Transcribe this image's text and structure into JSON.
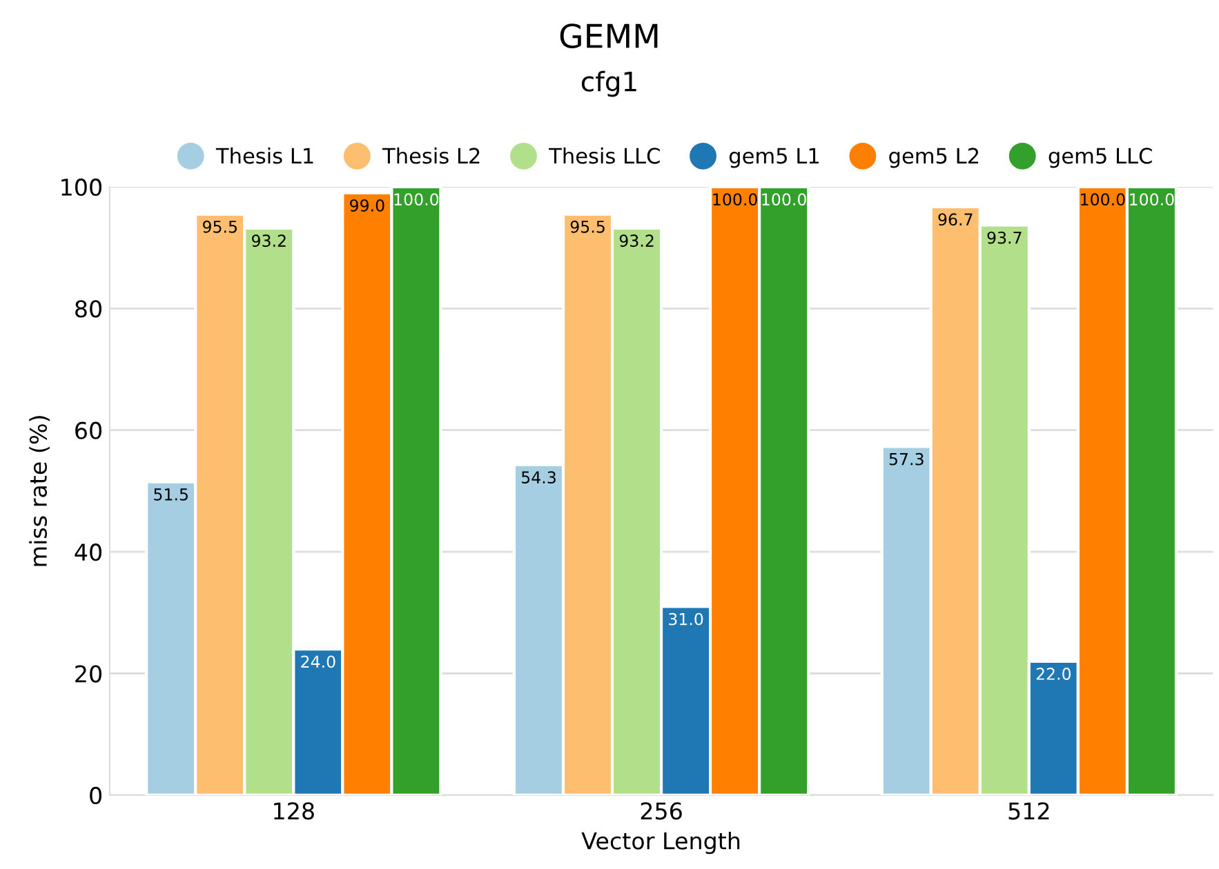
{
  "chart_data": {
    "type": "bar",
    "title": "GEMM",
    "subtitle": "cfg1",
    "xlabel": "Vector Length",
    "ylabel": "miss rate (%)",
    "categories": [
      "128",
      "256",
      "512"
    ],
    "series": [
      {
        "name": "Thesis L1",
        "color": "#a6cee3",
        "values": [
          51.5,
          54.3,
          57.3
        ],
        "value_labels": [
          "51.5",
          "54.3",
          "57.3"
        ]
      },
      {
        "name": "Thesis L2",
        "color": "#fdbf6f",
        "values": [
          95.5,
          95.5,
          96.7
        ],
        "value_labels": [
          "95.5",
          "95.5",
          "96.7"
        ]
      },
      {
        "name": "Thesis LLC",
        "color": "#b2df8a",
        "values": [
          93.2,
          93.2,
          93.7
        ],
        "value_labels": [
          "93.2",
          "93.2",
          "93.7"
        ]
      },
      {
        "name": "gem5 L1",
        "color": "#1f78b4",
        "values": [
          24.0,
          31.0,
          22.0
        ],
        "value_labels": [
          "24.0",
          "31.0",
          "22.0"
        ]
      },
      {
        "name": "gem5 L2",
        "color": "#ff7f00",
        "values": [
          99.0,
          100.0,
          100.0
        ],
        "value_labels": [
          "99.0",
          "100.0",
          "100.0"
        ]
      },
      {
        "name": "gem5 LLC",
        "color": "#33a02c",
        "values": [
          100.0,
          100.0,
          100.0
        ],
        "value_labels": [
          "100.0",
          "100.0",
          "100.0"
        ]
      }
    ],
    "ylim": [
      0,
      100
    ],
    "yticks": [
      0,
      20,
      40,
      60,
      80,
      100
    ],
    "grid": "y",
    "legend": "top",
    "marker": "circle"
  }
}
